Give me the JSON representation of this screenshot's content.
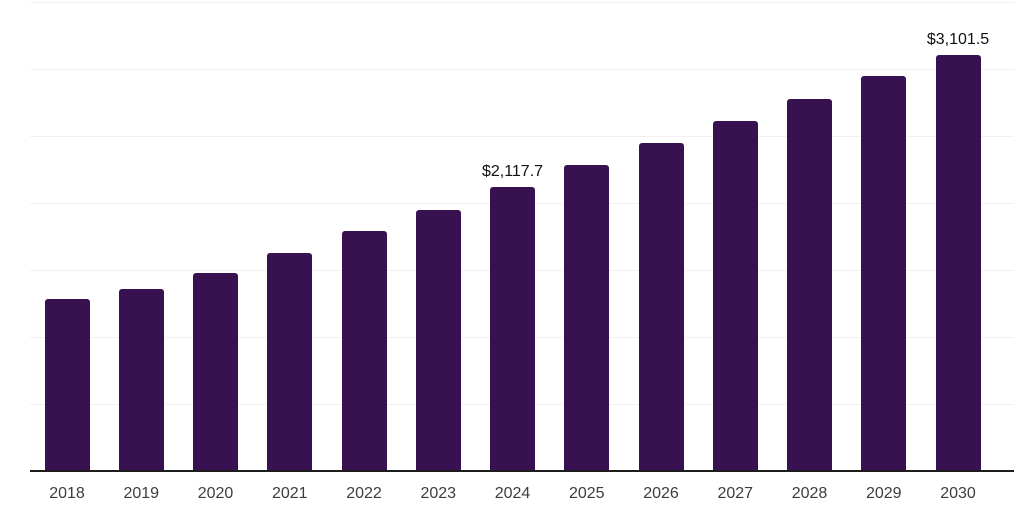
{
  "chart_data": {
    "type": "bar",
    "title": "",
    "xlabel": "",
    "ylabel": "",
    "categories": [
      "2018",
      "2019",
      "2020",
      "2021",
      "2022",
      "2023",
      "2024",
      "2025",
      "2026",
      "2027",
      "2028",
      "2029",
      "2030"
    ],
    "values": [
      1285,
      1360,
      1478,
      1626,
      1789,
      1945,
      2117.7,
      2280,
      2450,
      2610,
      2777,
      2945,
      3101.5
    ],
    "annotations": [
      {
        "index": 6,
        "text": "$2,117.7"
      },
      {
        "index": 12,
        "text": "$3,101.5"
      }
    ],
    "ylim": [
      0,
      3500
    ],
    "gridline_step": 500,
    "grid": true,
    "legend": false,
    "y_axis_labels_visible": false,
    "colors": {
      "bar": "#381151",
      "gridline": "#f0f0f0",
      "axis": "#1d1d1d",
      "tick_label": "#3d3d3d",
      "annotation": "#111111",
      "background": "#ffffff"
    }
  }
}
